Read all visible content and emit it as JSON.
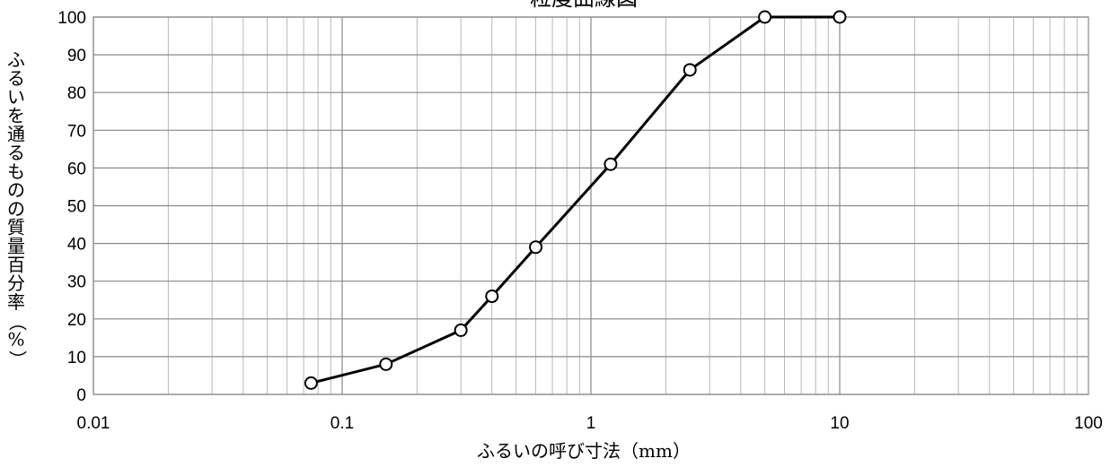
{
  "chart_data": {
    "type": "line",
    "title": "粒度曲線図",
    "xlabel": "ふるいの呼び寸法（mm）",
    "ylabel": "ふるいを通るものの質量百分率（%）",
    "x_scale": "log",
    "xlim": [
      0.01,
      100
    ],
    "ylim": [
      0,
      100
    ],
    "x_ticks": [
      0.01,
      0.1,
      1,
      10,
      100
    ],
    "x_tick_labels": [
      "0.01",
      "0.1",
      "1",
      "10",
      "100"
    ],
    "y_ticks": [
      0,
      10,
      20,
      30,
      40,
      50,
      60,
      70,
      80,
      90,
      100
    ],
    "y_tick_labels": [
      "0",
      "10",
      "20",
      "30",
      "40",
      "50",
      "60",
      "70",
      "80",
      "90",
      "100"
    ],
    "grid": true,
    "legend": "none",
    "series": [
      {
        "x": [
          0.075,
          0.15,
          0.3,
          0.4,
          0.6,
          1.2,
          2.5,
          5,
          10
        ],
        "y": [
          3,
          8,
          17,
          26,
          39,
          61,
          86,
          100,
          100
        ],
        "color": "#000000",
        "marker": "open-circle"
      }
    ]
  }
}
